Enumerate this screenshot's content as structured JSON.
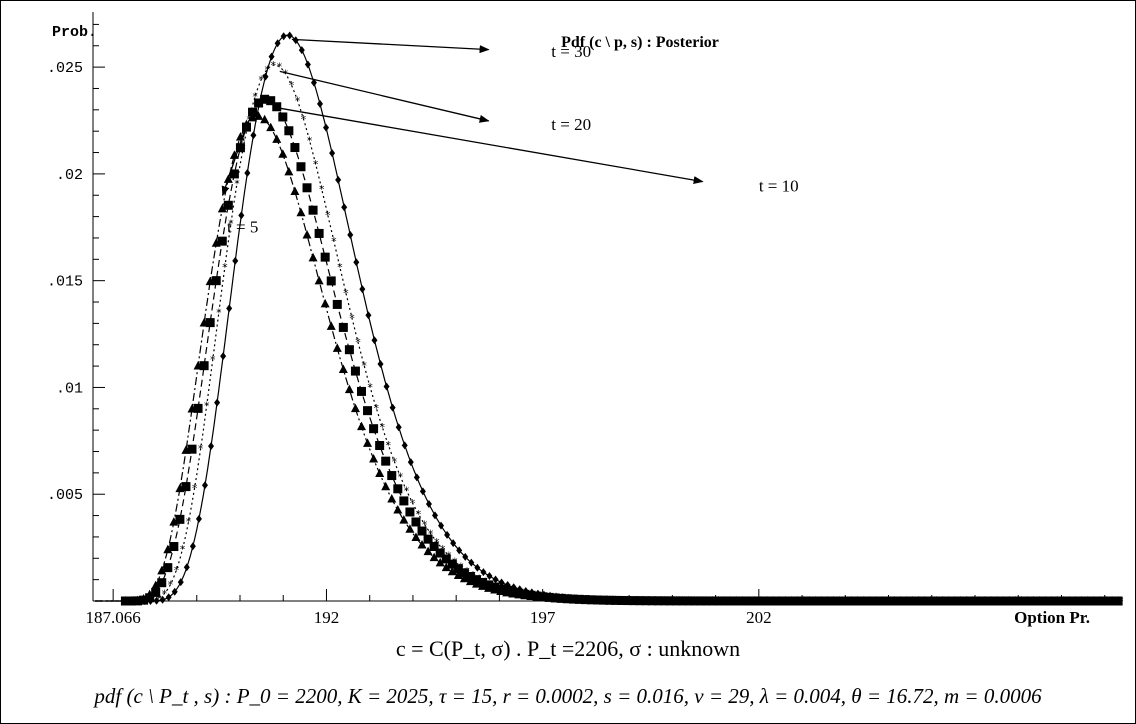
{
  "chart_data": {
    "type": "line",
    "title": "Pdf (c \\ p, s) : Posterior",
    "ylabel": "Prob.",
    "xlabel": "Option Pr.",
    "xlim": [
      186.6,
      210.4
    ],
    "ylim": [
      0,
      0.0273
    ],
    "x_ticks": [
      {
        "value": 187.066,
        "label": "187.066"
      },
      {
        "value": 192,
        "label": "192"
      },
      {
        "value": 197,
        "label": "197"
      },
      {
        "value": 202,
        "label": "202"
      }
    ],
    "y_ticks": [
      {
        "value": 0.005,
        "label": ".005"
      },
      {
        "value": 0.01,
        "label": ".01"
      },
      {
        "value": 0.015,
        "label": ".015"
      },
      {
        "value": 0.02,
        "label": ".02"
      },
      {
        "value": 0.025,
        "label": ".025"
      }
    ],
    "grid": false,
    "series": [
      {
        "name": "t = 5",
        "marker": "triangle",
        "line": "dash-dot",
        "peak_x": 190.4,
        "peak_y": 0.0227,
        "start_x": 187.35,
        "shape": 0.62,
        "points": [
          [
            187.35,
            0
          ],
          [
            188.0,
            0.0041
          ],
          [
            188.5,
            0.0108
          ],
          [
            189.0,
            0.0172
          ],
          [
            189.5,
            0.0212
          ],
          [
            190.0,
            0.0226
          ],
          [
            190.4,
            0.0227
          ],
          [
            191.0,
            0.0217
          ],
          [
            191.5,
            0.0196
          ],
          [
            192.0,
            0.0168
          ],
          [
            192.5,
            0.0141
          ],
          [
            193.0,
            0.0114
          ],
          [
            193.5,
            0.009
          ],
          [
            194.0,
            0.0071
          ],
          [
            194.5,
            0.0055
          ],
          [
            195.0,
            0.0042
          ],
          [
            196.0,
            0.0024
          ],
          [
            197.0,
            0.0014
          ],
          [
            198.0,
            0.0008
          ],
          [
            199.0,
            0.0004
          ],
          [
            200.0,
            0.0002
          ],
          [
            202.0,
            0.0001
          ],
          [
            205.0,
            0.0
          ],
          [
            210.0,
            0.0
          ]
        ]
      },
      {
        "name": "t = 10",
        "marker": "square",
        "line": "dashed",
        "peak_x": 190.6,
        "peak_y": 0.0235,
        "start_x": 187.35,
        "shape": 0.6,
        "points": [
          [
            187.35,
            0
          ],
          [
            188.0,
            0.0033
          ],
          [
            188.5,
            0.0091
          ],
          [
            189.0,
            0.0155
          ],
          [
            189.5,
            0.0203
          ],
          [
            190.0,
            0.0229
          ],
          [
            190.6,
            0.0235
          ],
          [
            191.0,
            0.0233
          ],
          [
            191.5,
            0.0219
          ],
          [
            192.0,
            0.0197
          ],
          [
            192.5,
            0.0172
          ],
          [
            193.0,
            0.0144
          ],
          [
            193.5,
            0.0118
          ],
          [
            194.0,
            0.0095
          ],
          [
            194.5,
            0.0075
          ],
          [
            195.0,
            0.0058
          ],
          [
            196.0,
            0.0035
          ],
          [
            197.0,
            0.0021
          ],
          [
            198.0,
            0.0012
          ],
          [
            199.0,
            0.0007
          ],
          [
            200.0,
            0.0004
          ],
          [
            202.0,
            0.0001
          ],
          [
            205.0,
            0.0
          ],
          [
            210.0,
            0.0
          ]
        ]
      },
      {
        "name": "t = 20",
        "marker": "star",
        "line": "dotted",
        "peak_x": 190.8,
        "peak_y": 0.0251,
        "start_x": 187.55,
        "shape": 0.57,
        "points": [
          [
            187.55,
            0
          ],
          [
            188.0,
            0.0019
          ],
          [
            188.5,
            0.0071
          ],
          [
            189.0,
            0.0135
          ],
          [
            189.5,
            0.0192
          ],
          [
            190.0,
            0.0233
          ],
          [
            190.8,
            0.0251
          ],
          [
            191.0,
            0.025
          ],
          [
            191.5,
            0.0239
          ],
          [
            192.0,
            0.0216
          ],
          [
            192.5,
            0.0187
          ],
          [
            193.0,
            0.0156
          ],
          [
            193.5,
            0.0126
          ],
          [
            194.0,
            0.0099
          ],
          [
            194.5,
            0.0077
          ],
          [
            195.0,
            0.0058
          ],
          [
            196.0,
            0.0032
          ],
          [
            197.0,
            0.0017
          ],
          [
            198.0,
            0.0009
          ],
          [
            199.0,
            0.0005
          ],
          [
            200.0,
            0.0002
          ],
          [
            202.0,
            0.0001
          ],
          [
            205.0,
            0.0
          ],
          [
            210.0,
            0.0
          ]
        ]
      },
      {
        "name": "t = 30",
        "marker": "diamond",
        "line": "solid",
        "peak_x": 191.1,
        "peak_y": 0.0265,
        "start_x": 187.65,
        "shape": 0.55,
        "points": [
          [
            187.65,
            0
          ],
          [
            188.0,
            0.0012
          ],
          [
            188.5,
            0.0052
          ],
          [
            189.0,
            0.0111
          ],
          [
            189.5,
            0.0171
          ],
          [
            190.0,
            0.0223
          ],
          [
            190.5,
            0.0256
          ],
          [
            191.1,
            0.0265
          ],
          [
            191.5,
            0.026
          ],
          [
            192.0,
            0.0241
          ],
          [
            192.5,
            0.0214
          ],
          [
            193.0,
            0.0181
          ],
          [
            193.5,
            0.0148
          ],
          [
            194.0,
            0.0117
          ],
          [
            194.5,
            0.009
          ],
          [
            195.0,
            0.0068
          ],
          [
            196.0,
            0.0037
          ],
          [
            197.0,
            0.0019
          ],
          [
            198.0,
            0.001
          ],
          [
            199.0,
            0.0005
          ],
          [
            200.0,
            0.0002
          ],
          [
            202.0,
            0.0001
          ],
          [
            205.0,
            0.0
          ],
          [
            210.0,
            0.0
          ]
        ]
      }
    ],
    "annotations": [
      {
        "text": "t = 30",
        "label_x": 197.2,
        "label_y": 0.0257
      },
      {
        "text": "t = 20",
        "label_x": 197.2,
        "label_y": 0.0223
      },
      {
        "text": "t = 10",
        "label_x": 202.0,
        "label_y": 0.0194
      },
      {
        "text": "t = 5",
        "label_x": 189.7,
        "label_y": 0.0175
      }
    ]
  },
  "captions": {
    "line1": "c = C(P_t, σ) .  P_t =2206,  σ : unknown",
    "line2": "pdf (c \\ P_t , s) : P_0 = 2200, K = 2025, τ = 15, r = 0.0002, s = 0.016, v = 29, λ = 0.004,   θ = 16.72, m = 0.0006"
  }
}
